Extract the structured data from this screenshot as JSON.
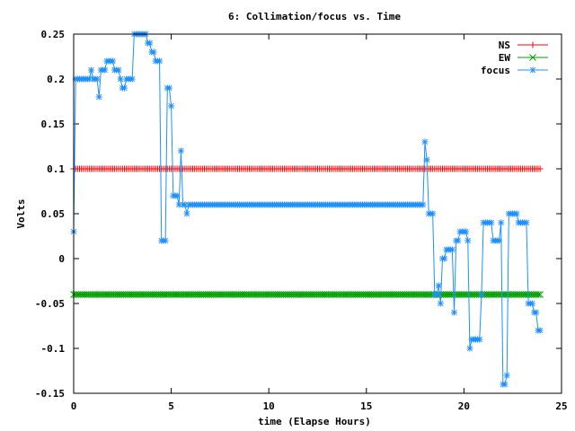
{
  "chart_data": {
    "type": "line",
    "title": "6: Collimation/focus vs. Time",
    "xlabel": "time (Elapse Hours)",
    "ylabel": "Volts",
    "xlim": [
      0,
      25
    ],
    "ylim": [
      -0.15,
      0.25
    ],
    "xticks": [
      0,
      5,
      10,
      15,
      20,
      25
    ],
    "yticks": [
      -0.15,
      -0.1,
      -0.05,
      0,
      0.05,
      0.1,
      0.15,
      0.2,
      0.25
    ],
    "ytick_labels": [
      "-0.15",
      "-0.1",
      "-0.05",
      "0",
      "0.05",
      "0.1",
      "0.15",
      "0.2",
      "0.25"
    ],
    "grid": false,
    "legend": "top-right",
    "series": [
      {
        "name": "NS",
        "color": "#ff0000",
        "marker": "plus",
        "x_start": 0,
        "x_end": 23.9,
        "x_step": 0.1,
        "values_constant": 0.1
      },
      {
        "name": "EW",
        "color": "#00a000",
        "marker": "cross",
        "x_start": 0,
        "x_end": 23.9,
        "x_step": 0.1,
        "values_constant": -0.04
      },
      {
        "name": "focus",
        "color": "#1e90ff",
        "marker": "star",
        "points": [
          [
            0,
            0.03
          ],
          [
            0.1,
            0.2
          ],
          [
            0.2,
            0.2
          ],
          [
            0.3,
            0.2
          ],
          [
            0.4,
            0.2
          ],
          [
            0.5,
            0.2
          ],
          [
            0.6,
            0.2
          ],
          [
            0.7,
            0.2
          ],
          [
            0.8,
            0.2
          ],
          [
            0.9,
            0.21
          ],
          [
            1.0,
            0.2
          ],
          [
            1.1,
            0.2
          ],
          [
            1.2,
            0.2
          ],
          [
            1.3,
            0.18
          ],
          [
            1.4,
            0.21
          ],
          [
            1.5,
            0.21
          ],
          [
            1.6,
            0.21
          ],
          [
            1.7,
            0.22
          ],
          [
            1.8,
            0.22
          ],
          [
            1.9,
            0.22
          ],
          [
            2.0,
            0.22
          ],
          [
            2.1,
            0.21
          ],
          [
            2.2,
            0.21
          ],
          [
            2.3,
            0.21
          ],
          [
            2.4,
            0.2
          ],
          [
            2.5,
            0.19
          ],
          [
            2.6,
            0.19
          ],
          [
            2.7,
            0.2
          ],
          [
            2.8,
            0.2
          ],
          [
            2.9,
            0.2
          ],
          [
            3.0,
            0.2
          ],
          [
            3.1,
            0.25
          ],
          [
            3.2,
            0.25
          ],
          [
            3.3,
            0.25
          ],
          [
            3.4,
            0.25
          ],
          [
            3.5,
            0.25
          ],
          [
            3.6,
            0.25
          ],
          [
            3.7,
            0.25
          ],
          [
            3.8,
            0.24
          ],
          [
            3.9,
            0.24
          ],
          [
            4.0,
            0.23
          ],
          [
            4.1,
            0.23
          ],
          [
            4.2,
            0.22
          ],
          [
            4.3,
            0.22
          ],
          [
            4.4,
            0.22
          ],
          [
            4.5,
            0.02
          ],
          [
            4.6,
            0.02
          ],
          [
            4.7,
            0.02
          ],
          [
            4.8,
            0.19
          ],
          [
            4.9,
            0.19
          ],
          [
            5.0,
            0.17
          ],
          [
            5.1,
            0.07
          ],
          [
            5.2,
            0.07
          ],
          [
            5.3,
            0.07
          ],
          [
            5.4,
            0.06
          ],
          [
            5.5,
            0.12
          ],
          [
            5.6,
            0.06
          ],
          [
            5.7,
            0.06
          ],
          [
            5.8,
            0.05
          ],
          [
            5.9,
            0.06
          ],
          [
            6.0,
            0.06
          ],
          [
            6.1,
            0.06
          ],
          [
            6.2,
            0.06
          ],
          [
            6.3,
            0.06
          ],
          [
            6.4,
            0.06
          ],
          [
            6.5,
            0.06
          ],
          [
            6.6,
            0.06
          ],
          [
            6.7,
            0.06
          ],
          [
            6.8,
            0.06
          ],
          [
            6.9,
            0.06
          ],
          [
            7.0,
            0.06
          ],
          [
            7.1,
            0.06
          ],
          [
            7.2,
            0.06
          ],
          [
            7.3,
            0.06
          ],
          [
            7.4,
            0.06
          ],
          [
            7.5,
            0.06
          ],
          [
            7.6,
            0.06
          ],
          [
            7.7,
            0.06
          ],
          [
            7.8,
            0.06
          ],
          [
            7.9,
            0.06
          ],
          [
            8.0,
            0.06
          ],
          [
            8.1,
            0.06
          ],
          [
            8.2,
            0.06
          ],
          [
            8.3,
            0.06
          ],
          [
            8.4,
            0.06
          ],
          [
            8.5,
            0.06
          ],
          [
            8.6,
            0.06
          ],
          [
            8.7,
            0.06
          ],
          [
            8.8,
            0.06
          ],
          [
            8.9,
            0.06
          ],
          [
            9.0,
            0.06
          ],
          [
            9.1,
            0.06
          ],
          [
            9.2,
            0.06
          ],
          [
            9.3,
            0.06
          ],
          [
            9.4,
            0.06
          ],
          [
            9.5,
            0.06
          ],
          [
            9.6,
            0.06
          ],
          [
            9.7,
            0.06
          ],
          [
            9.8,
            0.06
          ],
          [
            9.9,
            0.06
          ],
          [
            10.0,
            0.06
          ],
          [
            10.1,
            0.06
          ],
          [
            10.2,
            0.06
          ],
          [
            10.3,
            0.06
          ],
          [
            10.4,
            0.06
          ],
          [
            10.5,
            0.06
          ],
          [
            10.6,
            0.06
          ],
          [
            10.7,
            0.06
          ],
          [
            10.8,
            0.06
          ],
          [
            10.9,
            0.06
          ],
          [
            11.0,
            0.06
          ],
          [
            11.1,
            0.06
          ],
          [
            11.2,
            0.06
          ],
          [
            11.3,
            0.06
          ],
          [
            11.4,
            0.06
          ],
          [
            11.5,
            0.06
          ],
          [
            11.6,
            0.06
          ],
          [
            11.7,
            0.06
          ],
          [
            11.8,
            0.06
          ],
          [
            11.9,
            0.06
          ],
          [
            12.0,
            0.06
          ],
          [
            12.1,
            0.06
          ],
          [
            12.2,
            0.06
          ],
          [
            12.3,
            0.06
          ],
          [
            12.4,
            0.06
          ],
          [
            12.5,
            0.06
          ],
          [
            12.6,
            0.06
          ],
          [
            12.7,
            0.06
          ],
          [
            12.8,
            0.06
          ],
          [
            12.9,
            0.06
          ],
          [
            13.0,
            0.06
          ],
          [
            13.1,
            0.06
          ],
          [
            13.2,
            0.06
          ],
          [
            13.3,
            0.06
          ],
          [
            13.4,
            0.06
          ],
          [
            13.5,
            0.06
          ],
          [
            13.6,
            0.06
          ],
          [
            13.7,
            0.06
          ],
          [
            13.8,
            0.06
          ],
          [
            13.9,
            0.06
          ],
          [
            14.0,
            0.06
          ],
          [
            14.1,
            0.06
          ],
          [
            14.2,
            0.06
          ],
          [
            14.3,
            0.06
          ],
          [
            14.4,
            0.06
          ],
          [
            14.5,
            0.06
          ],
          [
            14.6,
            0.06
          ],
          [
            14.7,
            0.06
          ],
          [
            14.8,
            0.06
          ],
          [
            14.9,
            0.06
          ],
          [
            15.0,
            0.06
          ],
          [
            15.1,
            0.06
          ],
          [
            15.2,
            0.06
          ],
          [
            15.3,
            0.06
          ],
          [
            15.4,
            0.06
          ],
          [
            15.5,
            0.06
          ],
          [
            15.6,
            0.06
          ],
          [
            15.7,
            0.06
          ],
          [
            15.8,
            0.06
          ],
          [
            15.9,
            0.06
          ],
          [
            16.0,
            0.06
          ],
          [
            16.1,
            0.06
          ],
          [
            16.2,
            0.06
          ],
          [
            16.3,
            0.06
          ],
          [
            16.4,
            0.06
          ],
          [
            16.5,
            0.06
          ],
          [
            16.6,
            0.06
          ],
          [
            16.7,
            0.06
          ],
          [
            16.8,
            0.06
          ],
          [
            16.9,
            0.06
          ],
          [
            17.0,
            0.06
          ],
          [
            17.1,
            0.06
          ],
          [
            17.2,
            0.06
          ],
          [
            17.3,
            0.06
          ],
          [
            17.4,
            0.06
          ],
          [
            17.5,
            0.06
          ],
          [
            17.6,
            0.06
          ],
          [
            17.7,
            0.06
          ],
          [
            17.8,
            0.06
          ],
          [
            17.9,
            0.06
          ],
          [
            18.0,
            0.13
          ],
          [
            18.1,
            0.11
          ],
          [
            18.2,
            0.05
          ],
          [
            18.3,
            0.05
          ],
          [
            18.4,
            0.05
          ],
          [
            18.5,
            -0.04
          ],
          [
            18.6,
            -0.04
          ],
          [
            18.7,
            -0.03
          ],
          [
            18.8,
            -0.05
          ],
          [
            18.9,
            0.0
          ],
          [
            19.0,
            0.0
          ],
          [
            19.1,
            0.01
          ],
          [
            19.2,
            0.01
          ],
          [
            19.3,
            0.01
          ],
          [
            19.4,
            0.01
          ],
          [
            19.5,
            -0.06
          ],
          [
            19.6,
            0.02
          ],
          [
            19.7,
            0.02
          ],
          [
            19.8,
            0.03
          ],
          [
            19.9,
            0.03
          ],
          [
            20.0,
            0.03
          ],
          [
            20.1,
            0.03
          ],
          [
            20.2,
            0.02
          ],
          [
            20.3,
            -0.1
          ],
          [
            20.4,
            -0.09
          ],
          [
            20.5,
            -0.09
          ],
          [
            20.6,
            -0.09
          ],
          [
            20.7,
            -0.09
          ],
          [
            20.8,
            -0.09
          ],
          [
            20.9,
            -0.04
          ],
          [
            21.0,
            0.04
          ],
          [
            21.1,
            0.04
          ],
          [
            21.2,
            0.04
          ],
          [
            21.3,
            0.04
          ],
          [
            21.4,
            0.04
          ],
          [
            21.5,
            0.02
          ],
          [
            21.6,
            0.02
          ],
          [
            21.7,
            0.02
          ],
          [
            21.8,
            0.02
          ],
          [
            21.9,
            0.04
          ],
          [
            22.0,
            -0.14
          ],
          [
            22.1,
            -0.14
          ],
          [
            22.2,
            -0.13
          ],
          [
            22.3,
            0.05
          ],
          [
            22.4,
            0.05
          ],
          [
            22.5,
            0.05
          ],
          [
            22.6,
            0.05
          ],
          [
            22.7,
            0.05
          ],
          [
            22.8,
            0.04
          ],
          [
            22.9,
            0.04
          ],
          [
            23.0,
            0.04
          ],
          [
            23.1,
            0.04
          ],
          [
            23.2,
            0.04
          ],
          [
            23.3,
            -0.05
          ],
          [
            23.4,
            -0.05
          ],
          [
            23.5,
            -0.05
          ],
          [
            23.6,
            -0.06
          ],
          [
            23.7,
            -0.06
          ],
          [
            23.8,
            -0.08
          ],
          [
            23.9,
            -0.08
          ]
        ]
      }
    ]
  }
}
